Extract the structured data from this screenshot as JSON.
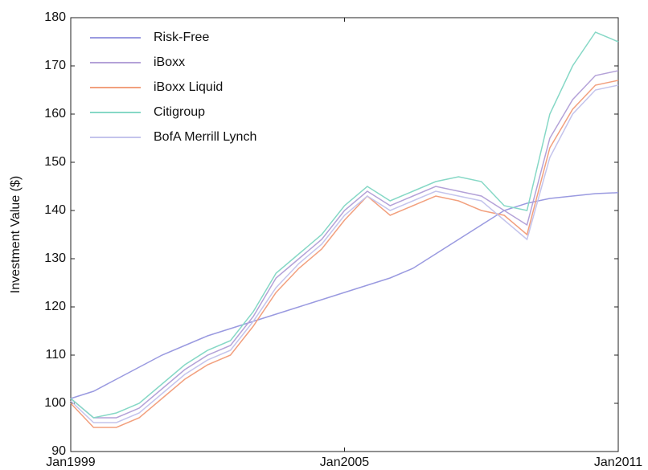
{
  "chart_data": {
    "type": "line",
    "y_label": "Investment Value ($)",
    "categories": [
      "Jan1999",
      null,
      null,
      null,
      null,
      null,
      null,
      null,
      null,
      null,
      null,
      null,
      "Jan2005",
      null,
      null,
      null,
      null,
      null,
      null,
      null,
      null,
      null,
      null,
      null,
      "Jan2011"
    ],
    "ylim": [
      90,
      180
    ],
    "yticks": [
      90,
      100,
      110,
      120,
      130,
      140,
      150,
      160,
      170,
      180
    ],
    "series": [
      {
        "name": "Risk-Free",
        "color": "#9a9ae0",
        "values": [
          101,
          102.5,
          105,
          107.5,
          110,
          112,
          114,
          115.5,
          117,
          118.5,
          120,
          121.5,
          123,
          124.5,
          126,
          128,
          131,
          134,
          137,
          140,
          141.5,
          142.5,
          143,
          143.5,
          143.7
        ]
      },
      {
        "name": "iBoxx",
        "color": "#b4a2d8",
        "values": [
          101,
          97,
          97,
          99,
          103,
          107,
          110,
          112,
          118,
          126,
          130,
          134,
          140,
          144,
          141,
          143,
          145,
          144,
          143,
          140,
          137,
          155,
          163,
          168,
          169
        ]
      },
      {
        "name": "iBoxx Liquid",
        "color": "#f2a07e",
        "values": [
          100,
          95,
          95,
          97,
          101,
          105,
          108,
          110,
          116,
          123,
          128,
          132,
          138,
          143,
          139,
          141,
          143,
          142,
          140,
          139,
          135,
          153,
          161,
          166,
          167
        ]
      },
      {
        "name": "Citigroup",
        "color": "#86d8c6",
        "values": [
          101,
          97,
          98,
          100,
          104,
          108,
          111,
          113,
          119,
          127,
          131,
          135,
          141,
          145,
          142,
          144,
          146,
          147,
          146,
          141,
          140,
          160,
          170,
          177,
          175
        ]
      },
      {
        "name": "BofA Merrill Lynch",
        "color": "#c4c4ec",
        "values": [
          100.5,
          96,
          96,
          98,
          102,
          106,
          109,
          111,
          117,
          124,
          129,
          133,
          139,
          143,
          140,
          142,
          144,
          143,
          142,
          138,
          134,
          151,
          160,
          165,
          166
        ]
      }
    ]
  }
}
